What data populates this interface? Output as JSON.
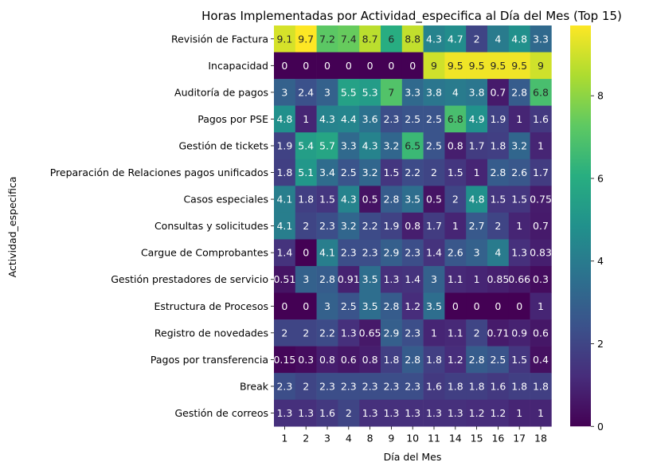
{
  "chart_data": {
    "type": "heatmap",
    "title": "Horas Implementadas por Actividad_especifica al Día del Mes (Top 15)",
    "xlabel": "Día del Mes",
    "ylabel": "Actividad_especifica",
    "x_categories": [
      "1",
      "2",
      "3",
      "4",
      "8",
      "9",
      "10",
      "11",
      "14",
      "15",
      "16",
      "17",
      "18"
    ],
    "y_categories": [
      "Revisión de Factura",
      "Incapacidad",
      "Auditoría de pagos",
      "Pagos por PSE",
      "Gestión de tickets",
      "Preparación de Relaciones pagos unificados",
      "Casos especiales",
      "Consultas y solicitudes",
      "Cargue de Comprobantes",
      "Gestión prestadores de servicio",
      "Estructura de Procesos",
      "Registro de novedades",
      "Pagos por transferencia",
      "Break",
      "Gestión de correos"
    ],
    "values": [
      [
        9.1,
        9.7,
        7.2,
        7.4,
        8.7,
        6,
        8.8,
        4.3,
        4.7,
        2,
        4,
        4.8,
        3.3
      ],
      [
        0,
        0,
        0,
        0,
        0,
        0,
        0,
        9,
        9.5,
        9.5,
        9.5,
        9.5,
        9
      ],
      [
        3,
        2.4,
        3,
        5.5,
        5.3,
        7,
        3.3,
        3.8,
        4,
        3.8,
        0.7,
        2.8,
        6.8
      ],
      [
        4.8,
        1,
        4.3,
        4.4,
        3.6,
        2.3,
        2.5,
        2.5,
        6.8,
        4.9,
        1.9,
        1,
        1.6
      ],
      [
        1.9,
        5.4,
        5.7,
        3.3,
        4.3,
        3.2,
        6.5,
        2.5,
        0.8,
        1.7,
        1.8,
        3.2,
        1
      ],
      [
        1.8,
        5.1,
        3.4,
        2.5,
        3.2,
        1.5,
        2.2,
        2,
        1.5,
        1,
        2.8,
        2.6,
        1.7
      ],
      [
        4.1,
        1.8,
        1.5,
        4.3,
        0.5,
        2.8,
        3.5,
        0.5,
        2,
        4.8,
        1.5,
        1.5,
        0.75
      ],
      [
        4.1,
        2,
        2.3,
        3.2,
        2.2,
        1.9,
        0.8,
        1.7,
        1,
        2.7,
        2,
        1,
        0.7
      ],
      [
        1.4,
        0,
        4.1,
        2.3,
        2.3,
        2.9,
        2.3,
        1.4,
        2.6,
        3,
        4,
        1.3,
        0.83
      ],
      [
        0.51,
        3,
        2.8,
        0.91,
        3.5,
        1.3,
        1.4,
        3,
        1.1,
        1,
        0.85,
        0.66,
        0.3
      ],
      [
        0,
        0,
        3,
        2.5,
        3.5,
        2.8,
        1.2,
        3.5,
        0,
        0,
        0,
        0,
        1
      ],
      [
        2,
        2,
        2.2,
        1.3,
        0.65,
        2.9,
        2.3,
        1,
        1.1,
        2,
        0.71,
        0.9,
        0.6
      ],
      [
        0.15,
        0.3,
        0.8,
        0.6,
        0.8,
        1.8,
        2.8,
        1.8,
        1.2,
        2.8,
        2.5,
        1.5,
        0.4
      ],
      [
        2.3,
        2,
        2.3,
        2.3,
        2.3,
        2.3,
        2.3,
        1.6,
        1.8,
        1.8,
        1.6,
        1.8,
        1.8
      ],
      [
        1.3,
        1.3,
        1.6,
        2,
        1.3,
        1.3,
        1.3,
        1.3,
        1.3,
        1.2,
        1.2,
        1,
        1
      ]
    ],
    "vmin": 0,
    "vmax": 9.7,
    "colormap": "viridis",
    "colorbar_ticks": [
      0,
      2,
      4,
      6,
      8
    ],
    "annotated": true,
    "grid": false
  }
}
